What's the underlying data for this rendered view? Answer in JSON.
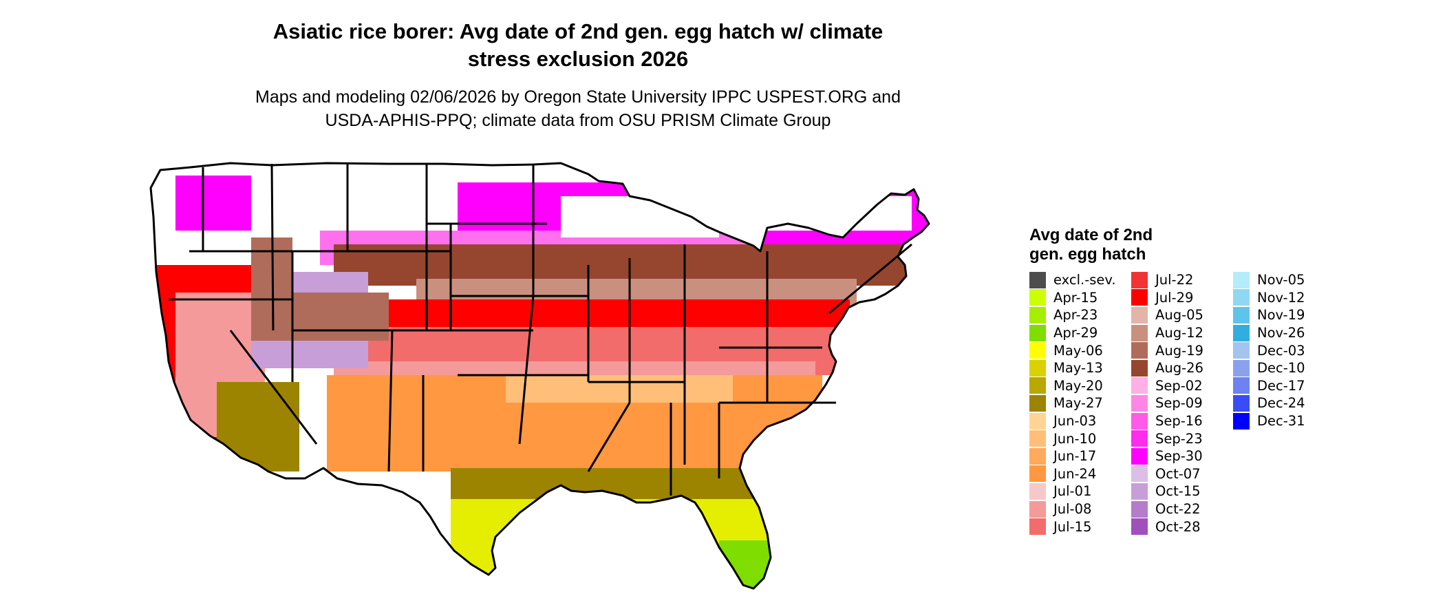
{
  "title_line1": "Asiatic rice borer: Avg date of 2nd gen. egg hatch w/ climate",
  "title_line2": "stress exclusion 2026",
  "subtitle_line1": "Maps and modeling 02/06/2026 by Oregon State University IPPC USPEST.ORG and",
  "subtitle_line2": "USDA-APHIS-PPQ; climate data from OSU PRISM Climate Group",
  "legend": {
    "title_line1": "Avg date of 2nd",
    "title_line2": "gen. egg hatch",
    "columns": [
      [
        {
          "label": "excl.-sev.",
          "color": "#4d4d4d"
        },
        {
          "label": "Apr-15",
          "color": "#ccff00"
        },
        {
          "label": "Apr-23",
          "color": "#a6ee00"
        },
        {
          "label": "Apr-29",
          "color": "#7fdd00"
        },
        {
          "label": "May-06",
          "color": "#ffff00"
        },
        {
          "label": "May-13",
          "color": "#d9d100"
        },
        {
          "label": "May-20",
          "color": "#b8a800"
        },
        {
          "label": "May-27",
          "color": "#9c8400"
        },
        {
          "label": "Jun-03",
          "color": "#ffd494"
        },
        {
          "label": "Jun-10",
          "color": "#ffbf78"
        },
        {
          "label": "Jun-17",
          "color": "#ffaa5c"
        },
        {
          "label": "Jun-24",
          "color": "#ff9840"
        },
        {
          "label": "Jul-01",
          "color": "#f7c8c8"
        },
        {
          "label": "Jul-08",
          "color": "#f49a9a"
        },
        {
          "label": "Jul-15",
          "color": "#f26c6c"
        }
      ],
      [
        {
          "label": "Jul-22",
          "color": "#f23333"
        },
        {
          "label": "Jul-29",
          "color": "#ff0000"
        },
        {
          "label": "Aug-05",
          "color": "#e3b4a8"
        },
        {
          "label": "Aug-12",
          "color": "#c99080"
        },
        {
          "label": "Aug-19",
          "color": "#b06c5a"
        },
        {
          "label": "Aug-26",
          "color": "#96462f"
        },
        {
          "label": "Sep-02",
          "color": "#ffb0e6"
        },
        {
          "label": "Sep-09",
          "color": "#ff86e6"
        },
        {
          "label": "Sep-16",
          "color": "#ff5ae8"
        },
        {
          "label": "Sep-23",
          "color": "#ff2cee"
        },
        {
          "label": "Sep-30",
          "color": "#ff00ff"
        },
        {
          "label": "Oct-07",
          "color": "#dcbfe6"
        },
        {
          "label": "Oct-15",
          "color": "#c89ed9"
        },
        {
          "label": "Oct-22",
          "color": "#b47ccb"
        },
        {
          "label": "Oct-28",
          "color": "#a050bd"
        }
      ],
      [
        {
          "label": "Nov-05",
          "color": "#b4ecfa"
        },
        {
          "label": "Nov-12",
          "color": "#8ed8f2"
        },
        {
          "label": "Nov-19",
          "color": "#5fc4ec"
        },
        {
          "label": "Nov-26",
          "color": "#30aee0"
        },
        {
          "label": "Dec-03",
          "color": "#a3c4ee"
        },
        {
          "label": "Dec-10",
          "color": "#8aa2ee"
        },
        {
          "label": "Dec-17",
          "color": "#6e82f2"
        },
        {
          "label": "Dec-24",
          "color": "#3a4cf6"
        },
        {
          "label": "Dec-31",
          "color": "#0000ff"
        }
      ]
    ]
  },
  "map_colors": {
    "white": "#ffffff",
    "magenta": "#ff00ff",
    "pink": "#ff70ee",
    "brown": "#96462f",
    "brown_mid": "#b06c5a",
    "brown_light": "#c99080",
    "tan": "#e3b4a8",
    "red": "#ff0000",
    "red_light": "#f26c6c",
    "salmon": "#f49a9a",
    "orange": "#ff9840",
    "peach": "#ffbf78",
    "olive": "#9c8400",
    "yellow": "#e6ee00",
    "green": "#7fdd00",
    "lavender": "#c89ed9"
  }
}
